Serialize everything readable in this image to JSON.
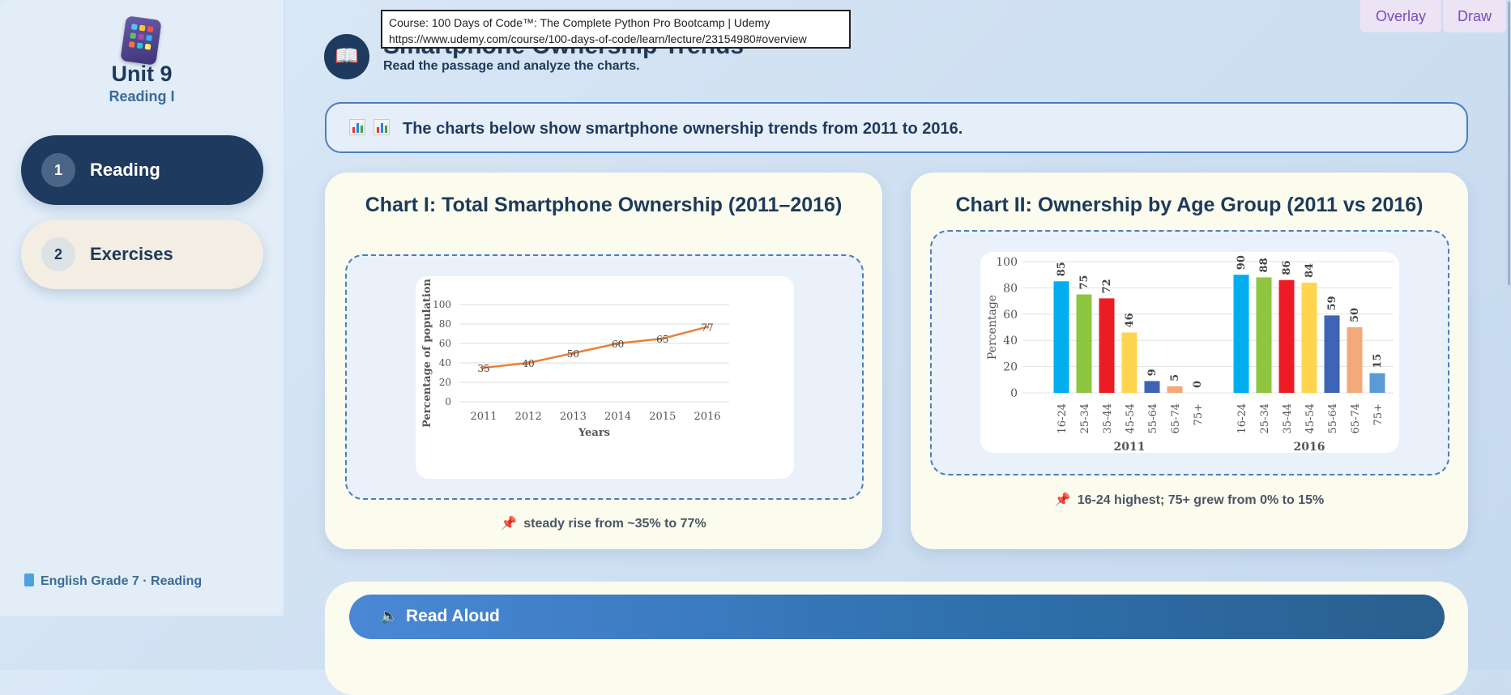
{
  "sidebar": {
    "unit_title": "Unit 9",
    "unit_subtitle": "Reading I",
    "items": [
      {
        "num": "1",
        "label": "Reading"
      },
      {
        "num": "2",
        "label": "Exercises"
      }
    ],
    "footer": "English Grade 7 · Reading"
  },
  "header": {
    "title": "Smartphone Ownership Trends",
    "subtitle": "Read the passage and analyze the charts.",
    "book_icon": "📖"
  },
  "tooltip": {
    "line1": "Course: 100 Days of Code™: The Complete Python Pro Bootcamp | Udemy",
    "line2": "https://www.udemy.com/course/100-days-of-code/learn/lecture/23154980#overview"
  },
  "toolbar": {
    "overlay": "Overlay",
    "draw": "Draw"
  },
  "intro": {
    "text": "The charts below show smartphone ownership trends from 2011 to 2016."
  },
  "chart1": {
    "title": "Chart I: Total Smartphone Ownership (2011–2016)",
    "note": "steady rise from ~35% to 77%"
  },
  "chart2": {
    "title": "Chart II: Ownership by Age Group (2011 vs 2016)",
    "note": "16-24 highest; 75+ grew from 0% to 15%"
  },
  "read_aloud": {
    "label": "Read Aloud"
  },
  "chart_data": [
    {
      "type": "line",
      "x": [
        "2011",
        "2012",
        "2013",
        "2014",
        "2015",
        "2016"
      ],
      "values": [
        35,
        40,
        50,
        60,
        65,
        77
      ],
      "xlabel": "Years",
      "ylabel": "Percentage of population",
      "ylim": [
        0,
        100
      ],
      "yticks": [
        0,
        20,
        40,
        60,
        80,
        100
      ],
      "color": "#e6823a",
      "grid": true
    },
    {
      "type": "bar",
      "groups": [
        "2011",
        "2016"
      ],
      "categories": [
        "16-24",
        "25-34",
        "35-44",
        "45-54",
        "55-64",
        "65-74",
        "75+"
      ],
      "colors": [
        "#00aeef",
        "#8dc63f",
        "#ed1c24",
        "#ffd54f",
        "#3f63b5",
        "#f4a97a",
        "#5b9bd5"
      ],
      "series": [
        {
          "group": "2011",
          "values": [
            85,
            75,
            72,
            46,
            9,
            5,
            0
          ]
        },
        {
          "group": "2016",
          "values": [
            90,
            88,
            86,
            84,
            59,
            50,
            15
          ]
        }
      ],
      "ylabel": "Percentage",
      "ylim": [
        0,
        100
      ],
      "yticks": [
        0,
        20,
        40,
        60,
        80,
        100
      ],
      "grid": true
    }
  ]
}
